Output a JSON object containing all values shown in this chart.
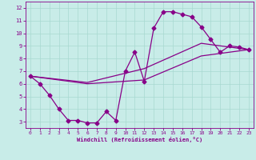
{
  "xlabel": "Windchill (Refroidissement éolien,°C)",
  "xlim": [
    -0.5,
    23.5
  ],
  "ylim": [
    2.5,
    12.5
  ],
  "xticks": [
    0,
    1,
    2,
    3,
    4,
    5,
    6,
    7,
    8,
    9,
    10,
    11,
    12,
    13,
    14,
    15,
    16,
    17,
    18,
    19,
    20,
    21,
    22,
    23
  ],
  "yticks": [
    3,
    4,
    5,
    6,
    7,
    8,
    9,
    10,
    11,
    12
  ],
  "bg_color": "#c8ece8",
  "line_color": "#880088",
  "grid_color": "#a8d8d0",
  "line1_x": [
    0,
    1,
    2,
    3,
    4,
    5,
    6,
    7,
    8,
    9,
    10,
    11,
    12,
    13,
    14,
    15,
    16,
    17,
    18,
    19,
    20,
    21,
    22,
    23
  ],
  "line1_y": [
    6.6,
    6.0,
    5.1,
    4.0,
    3.1,
    3.1,
    2.9,
    2.9,
    3.8,
    3.1,
    7.0,
    8.5,
    6.2,
    10.4,
    11.7,
    11.7,
    11.5,
    11.3,
    10.5,
    9.5,
    8.5,
    9.0,
    8.9,
    8.7
  ],
  "line2_x": [
    0,
    6,
    12,
    18,
    23
  ],
  "line2_y": [
    6.6,
    6.0,
    6.3,
    8.2,
    8.7
  ],
  "line3_x": [
    0,
    6,
    12,
    18,
    23
  ],
  "line3_y": [
    6.6,
    6.1,
    7.2,
    9.2,
    8.7
  ],
  "marker": "D",
  "markersize": 2.5,
  "linewidth": 0.9
}
